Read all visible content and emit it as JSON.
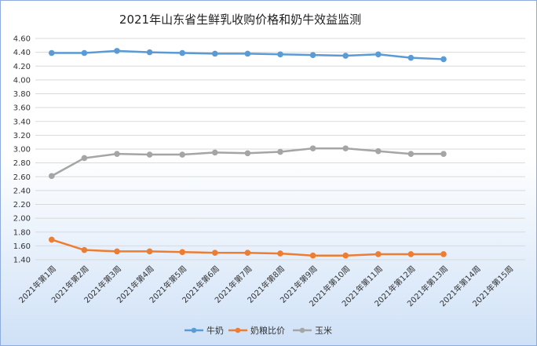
{
  "chart_data": {
    "type": "line",
    "title": "2021年山东省生鲜乳收购价格和奶牛效益监测",
    "xlabel": "",
    "ylabel": "",
    "categories": [
      "2021年第1周",
      "2021年第2周",
      "2021年第3周",
      "2021年第4周",
      "2021年第5周",
      "2021年第6周",
      "2021年第7周",
      "2021年第8周",
      "2021年第9周",
      "2021年第10周",
      "2021年第11周",
      "2021年第12周",
      "2021年第13周",
      "2021年第14周",
      "2021年第15周"
    ],
    "ylim": [
      1.4,
      4.6
    ],
    "yticks": [
      "4.60",
      "4.40",
      "4.20",
      "4.00",
      "3.80",
      "3.60",
      "3.40",
      "3.20",
      "3.00",
      "2.80",
      "2.60",
      "2.40",
      "2.20",
      "2.00",
      "1.80",
      "1.60",
      "1.40"
    ],
    "grid": true,
    "legend_position": "bottom",
    "series": [
      {
        "name": "牛奶",
        "color": "#5b9bd5",
        "values": [
          4.39,
          4.39,
          4.42,
          4.4,
          4.39,
          4.38,
          4.38,
          4.37,
          4.36,
          4.35,
          4.37,
          4.32,
          4.3,
          null,
          null
        ]
      },
      {
        "name": "奶粮比价",
        "color": "#ed7d31",
        "values": [
          1.69,
          1.54,
          1.52,
          1.52,
          1.51,
          1.5,
          1.5,
          1.49,
          1.46,
          1.46,
          1.48,
          1.48,
          1.48,
          null,
          null
        ]
      },
      {
        "name": "玉米",
        "color": "#a5a5a5",
        "values": [
          2.61,
          2.87,
          2.93,
          2.92,
          2.92,
          2.95,
          2.94,
          2.96,
          3.01,
          3.01,
          2.97,
          2.93,
          2.93,
          null,
          null
        ]
      }
    ]
  }
}
